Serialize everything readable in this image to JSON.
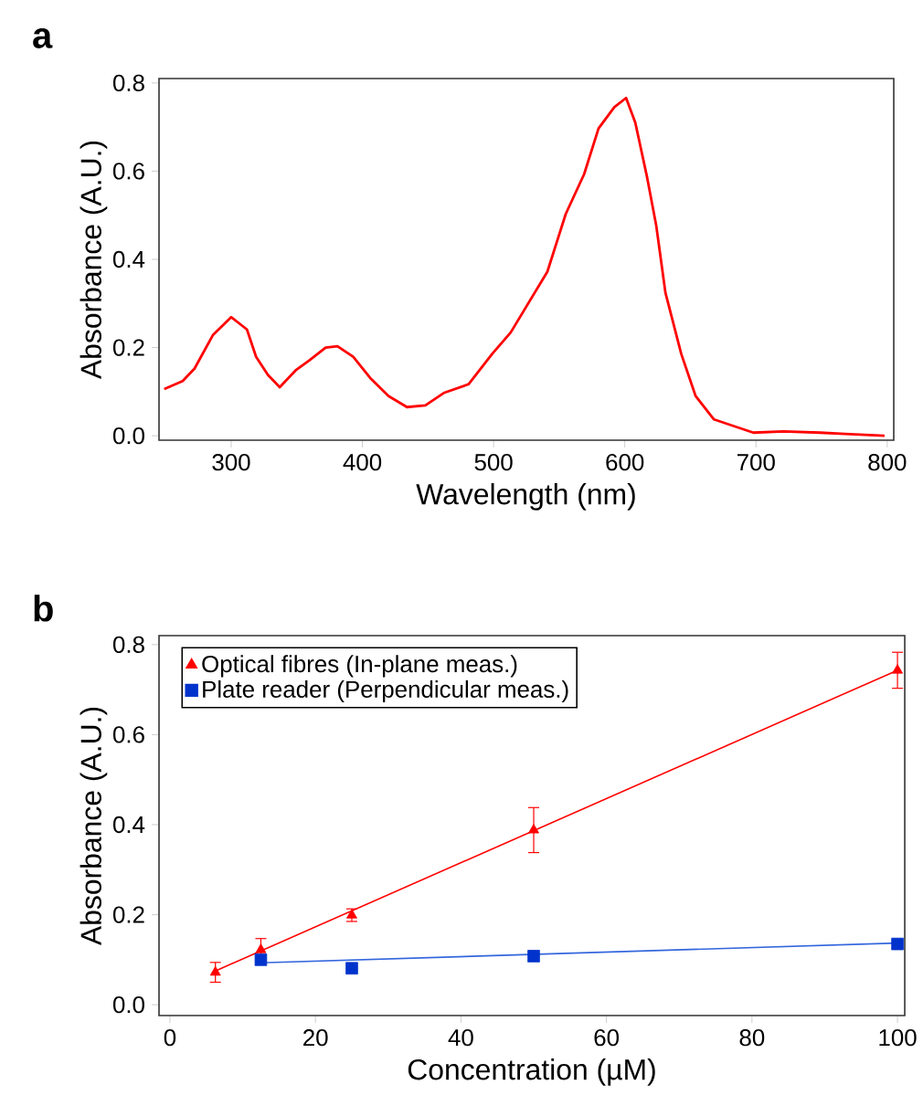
{
  "chart_data": [
    {
      "type": "line",
      "annotations": [
        "a"
      ],
      "xlabel": "Wavelength (nm)",
      "ylabel": "Absorbance (A.U.)",
      "xlim": [
        245,
        805
      ],
      "ylim": [
        -0.01,
        0.81
      ],
      "xticks": [
        300,
        400,
        500,
        600,
        700,
        800
      ],
      "yticks": [
        {
          "value": 0,
          "label": "0.0"
        },
        0.2,
        0.4,
        0.6,
        0.8
      ],
      "grid": false,
      "legend": false,
      "series": [
        {
          "color": "#ff0000",
          "x": [
            249,
            263,
            272,
            286,
            300,
            312,
            319,
            328,
            337,
            349,
            360,
            372,
            381,
            393,
            406,
            420,
            434,
            448,
            462,
            481,
            499,
            513,
            527,
            541,
            555,
            569,
            580,
            592,
            601,
            608,
            617,
            624,
            631,
            643,
            654,
            668,
            684,
            698,
            721,
            749,
            768,
            798
          ],
          "values": [
            0.106,
            0.124,
            0.152,
            0.228,
            0.269,
            0.241,
            0.179,
            0.138,
            0.11,
            0.148,
            0.172,
            0.2,
            0.203,
            0.179,
            0.131,
            0.09,
            0.065,
            0.069,
            0.097,
            0.117,
            0.186,
            0.234,
            0.303,
            0.372,
            0.503,
            0.593,
            0.697,
            0.745,
            0.766,
            0.71,
            0.586,
            0.476,
            0.324,
            0.186,
            0.09,
            0.037,
            0.021,
            0.007,
            0.01,
            0.007,
            0.004,
            0.0
          ]
        }
      ]
    },
    {
      "type": "scatter",
      "annotations": [
        "b"
      ],
      "xlabel": "Concentration (µM)",
      "ylabel": "Absorbance (A.U.)",
      "xlim": [
        -1.5,
        101
      ],
      "ylim": [
        -0.024,
        0.82
      ],
      "xticks": [
        0,
        20,
        40,
        60,
        80,
        100
      ],
      "yticks": [
        {
          "value": 0,
          "label": "0.0"
        },
        0.2,
        0.4,
        0.6,
        0.8
      ],
      "grid": false,
      "legend": "top left",
      "series": [
        {
          "name": "Optical fibres (In-plane meas.)",
          "color": "#ff0000",
          "marker": "triangle",
          "x": [
            6.25,
            12.5,
            25,
            50,
            100
          ],
          "values": [
            0.072,
            0.122,
            0.199,
            0.388,
            0.743
          ],
          "errors": [
            0.022,
            0.025,
            0.014,
            0.05,
            0.04
          ]
        },
        {
          "name": "Plate reader (Perpendicular meas.)",
          "color": "#0033cc",
          "marker": "square",
          "x": [
            12.5,
            25,
            50,
            100
          ],
          "values": [
            0.1,
            0.081,
            0.108,
            0.135
          ]
        },
        {
          "type": "line",
          "color": "#ff0000",
          "x": [
            6.25,
            100
          ],
          "values": [
            0.075,
            0.743
          ]
        },
        {
          "type": "line",
          "color": "#3366dd",
          "x": [
            12.5,
            100
          ],
          "values": [
            0.093,
            0.137
          ]
        }
      ]
    }
  ]
}
